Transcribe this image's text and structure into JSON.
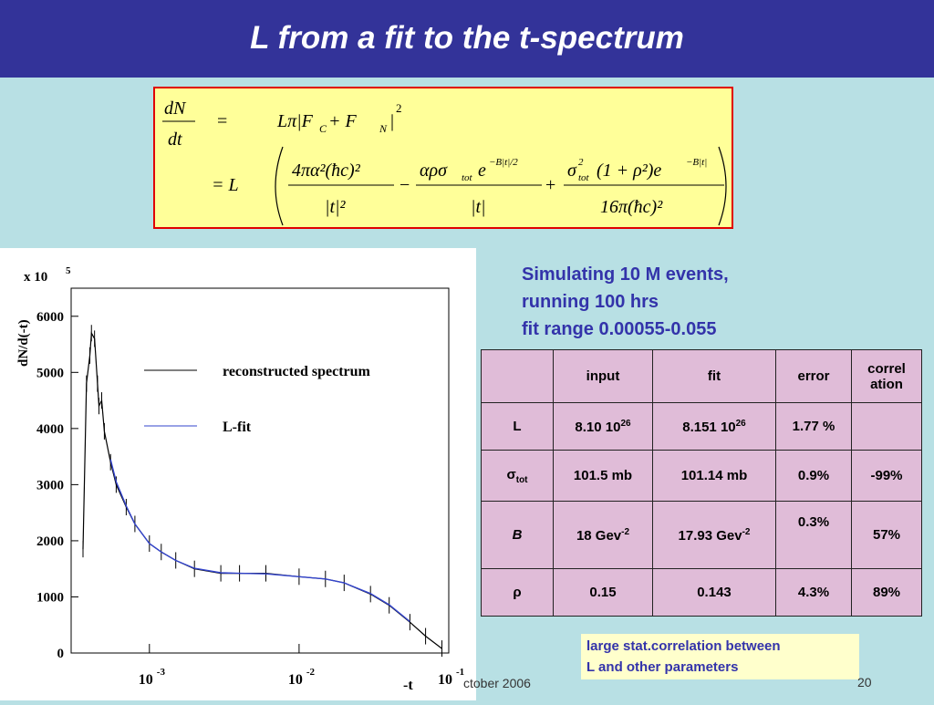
{
  "slide": {
    "title": "L from a fit to the t-spectrum",
    "sim_lines": [
      "Simulating 10 M events,",
      "running 100 hrs",
      "fit range 0.00055-0.055"
    ],
    "note_lines": [
      "large stat.correlation between",
      "L and other parameters"
    ],
    "footer_date": "ctober 2006",
    "page_number": "20",
    "colors": {
      "title_bar": "#333399",
      "background": "#b8e0e4",
      "formula_box": "#ffff99",
      "formula_border": "#e00000",
      "table_cell": "#e0bcd8",
      "text_blue": "#3333aa"
    }
  },
  "formula": {
    "lhs_num": "dN",
    "lhs_den": "dt",
    "eq": "=",
    "eq_L": "= L",
    "line1": "Lπ|F",
    "sub_c": "C",
    "plus": " + F",
    "sub_n": "N",
    "close": "|",
    "sq": "2",
    "t1_num": "4πα²(ħc)²",
    "t1_den": "|t|²",
    "minus": "−",
    "t2_num": "αρσ",
    "t2_sub": "tot",
    "t2_e": "e",
    "t2_exp": "−B|t|/2",
    "t2_den": "|t|",
    "plus2": "+",
    "t3_num_a": "σ",
    "t3_sup": "2",
    "t3_sub": "tot",
    "t3_num_b": "(1 + ρ²)e",
    "t3_exp": "−B|t|",
    "t3_den": "16π(ħc)²"
  },
  "table": {
    "headers": [
      "",
      "input",
      "fit",
      "error",
      "correl ation"
    ],
    "rows": [
      {
        "param": "L",
        "input": "8.10 10",
        "input_sup": "26",
        "fit": "8.151 10",
        "fit_sup": "26",
        "error": "1.77 %",
        "corr": ""
      },
      {
        "param": "σ",
        "param_sub": "tot",
        "input": "101.5 mb",
        "fit": "101.14 mb",
        "error": "0.9%",
        "corr": "-99%"
      },
      {
        "param": "B",
        "input": "18 Gev",
        "input_sup": "-2",
        "fit": "17.93 Gev",
        "fit_sup": "-2",
        "error": "0.3%",
        "corr": "57%"
      },
      {
        "param": "ρ",
        "input": "0.15",
        "fit": "0.143",
        "error": "4.3%",
        "corr": "89%"
      }
    ]
  },
  "chart_data": {
    "type": "line",
    "ylabel": "dN/d(-t)",
    "y_multiplier": "x 10",
    "y_multiplier_exp": "5",
    "xlabel": "-t",
    "x_scale": "log",
    "xlim": [
      0.0003,
      0.1
    ],
    "ylim": [
      0,
      6500
    ],
    "y_ticks": [
      0,
      1000,
      2000,
      3000,
      4000,
      5000,
      6000
    ],
    "x_ticks": [
      {
        "base": "10",
        "exp": "-3",
        "value": 0.001
      },
      {
        "base": "10",
        "exp": "-2",
        "value": 0.01
      },
      {
        "base": "10",
        "exp": "-1",
        "value": 0.1
      }
    ],
    "legend_placement": "top-right",
    "series": [
      {
        "name": "reconstructed spectrum",
        "color": "#000000",
        "x": [
          0.00036,
          0.00038,
          0.0004,
          0.00041,
          0.00043,
          0.00045,
          0.00046,
          0.00048,
          0.0005,
          0.00055,
          0.0006,
          0.0007,
          0.0008,
          0.001,
          0.0012,
          0.0015,
          0.002,
          0.003,
          0.004,
          0.006,
          0.01,
          0.015,
          0.02,
          0.03,
          0.04,
          0.055,
          0.07,
          0.09
        ],
        "y": [
          1850,
          4800,
          5300,
          5700,
          5600,
          4800,
          4400,
          4500,
          3950,
          3400,
          3000,
          2600,
          2300,
          1950,
          1800,
          1650,
          1500,
          1420,
          1420,
          1420,
          1360,
          1320,
          1250,
          1050,
          850,
          550,
          300,
          80
        ]
      },
      {
        "name": "L-fit",
        "color": "#3344cc",
        "x": [
          0.00055,
          0.0006,
          0.0007,
          0.0008,
          0.001,
          0.0012,
          0.0015,
          0.002,
          0.003,
          0.004,
          0.006,
          0.01,
          0.015,
          0.02,
          0.03,
          0.04,
          0.055
        ],
        "y": [
          3450,
          3050,
          2620,
          2300,
          1950,
          1800,
          1650,
          1510,
          1430,
          1420,
          1410,
          1360,
          1320,
          1250,
          1060,
          860,
          560
        ]
      }
    ]
  }
}
